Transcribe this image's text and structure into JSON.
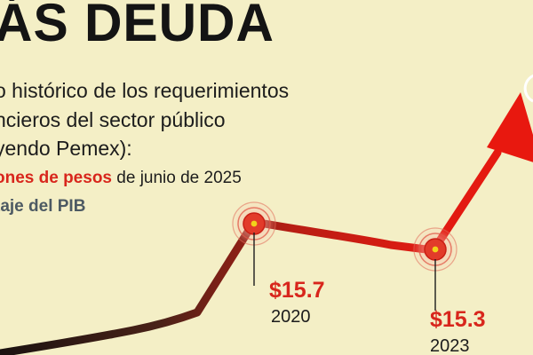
{
  "title": "ÁS DEUDA",
  "subtitle_lines": [
    "o histórico de los requerimientos",
    "ncieros del sector público",
    "yendo Pemex):"
  ],
  "legend": {
    "red_label": "ones de pesos",
    "red_suffix": " de junio de 2025",
    "gray_label": "taje del PIB"
  },
  "colors": {
    "background": "#f4efc6",
    "line_dark": "#2a1a16",
    "line_red": "#e01b12",
    "highlight": "#f2d21a"
  },
  "chart_data": {
    "type": "line",
    "series": [
      {
        "points": [
          {
            "x": 2020,
            "y": 15.7,
            "label": "$15.7"
          },
          {
            "x": 2023,
            "y": 15.3,
            "label": "$15.3"
          }
        ]
      }
    ],
    "annotations": [
      {
        "value_label": "$15.7",
        "year_label": "2020"
      },
      {
        "value_label": "$15.3",
        "year_label": "2023"
      }
    ]
  }
}
